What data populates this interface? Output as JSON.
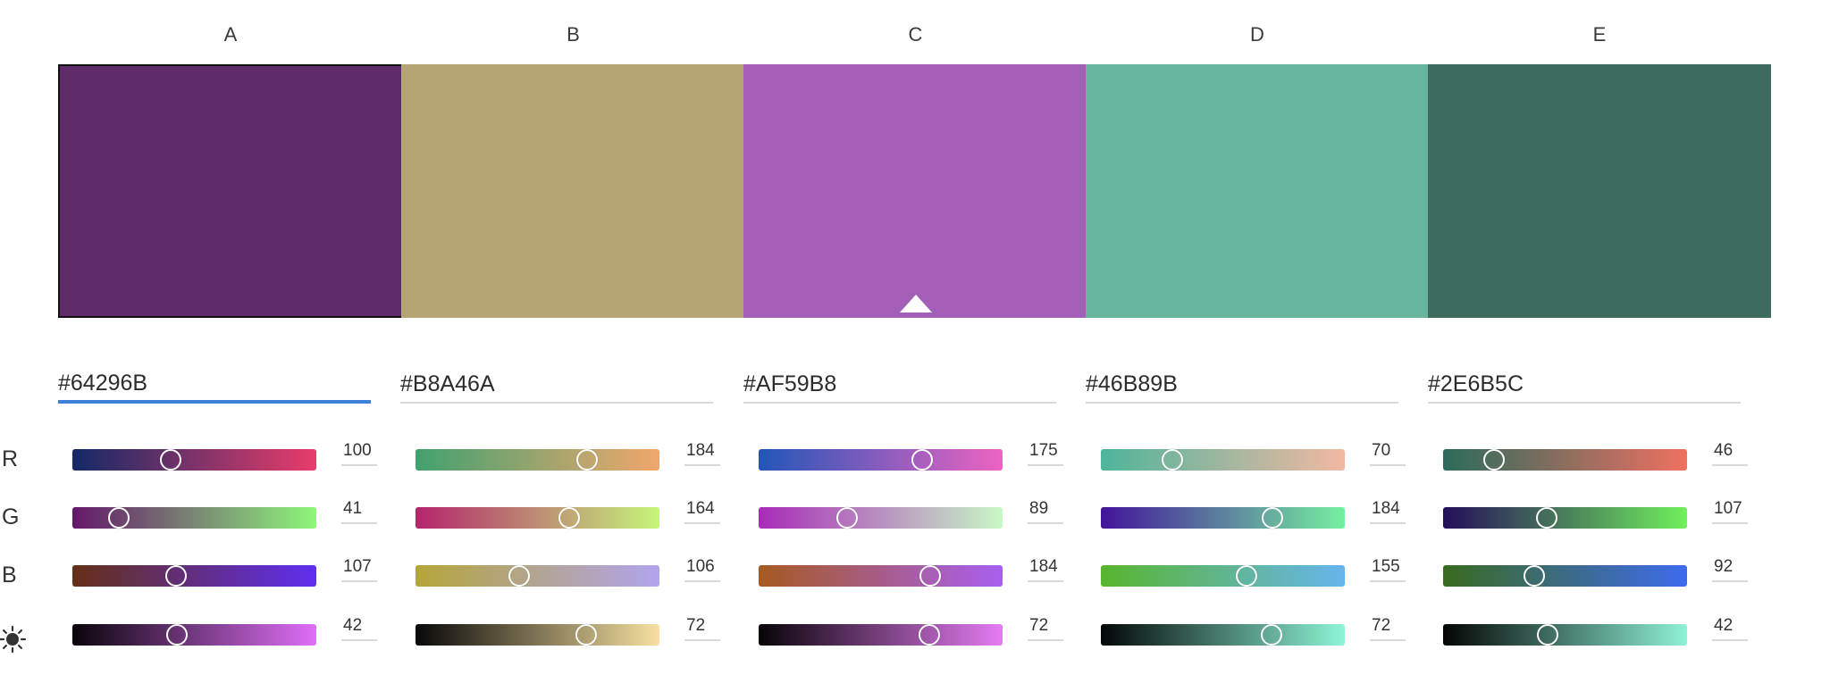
{
  "columns": [
    {
      "letter": "A",
      "hex": "#64296B",
      "color": "#5d2c69",
      "r": 100,
      "g": 41,
      "b": 107,
      "brightness": 42,
      "selected": true,
      "gradients": {
        "r": [
          "#132967",
          "#e93c6b"
        ],
        "g": [
          "#64176b",
          "#8ef77b"
        ],
        "b": [
          "#642f16",
          "#5f2ef0"
        ],
        "l": [
          "#0a050b",
          "#df6ef8"
        ]
      }
    },
    {
      "letter": "B",
      "hex": "#B8A46A",
      "color": "#b4a572",
      "r": 184,
      "g": 164,
      "b": 106,
      "brightness": 72,
      "selected": false,
      "gradients": {
        "r": [
          "#41a16f",
          "#f1a76c"
        ],
        "g": [
          "#b5256d",
          "#c5f57a"
        ],
        "b": [
          "#b4a539",
          "#b2a4ee"
        ],
        "l": [
          "#080808",
          "#f7e1a1"
        ]
      }
    },
    {
      "letter": "C",
      "hex": "#AF59B8",
      "color": "#a35fb7",
      "r": 175,
      "g": 89,
      "b": 184,
      "brightness": 72,
      "selected": false,
      "gradients": {
        "r": [
          "#2256b8",
          "#ee63c2"
        ],
        "g": [
          "#a82bb8",
          "#c9f7c7"
        ],
        "b": [
          "#a65a20",
          "#a85ff1"
        ],
        "l": [
          "#080408",
          "#e57bf3"
        ]
      }
    },
    {
      "letter": "D",
      "hex": "#46B89B",
      "color": "#67b59c",
      "r": 70,
      "g": 184,
      "b": 155,
      "brightness": 72,
      "selected": false,
      "gradients": {
        "r": [
          "#4db59b",
          "#f2b8a2"
        ],
        "g": [
          "#43149b",
          "#75f0a0"
        ],
        "b": [
          "#58b52e",
          "#67b5ee"
        ],
        "l": [
          "#040707",
          "#8ef5d7"
        ]
      }
    },
    {
      "letter": "E",
      "hex": "#2E6B5C",
      "color": "#3d6b5e",
      "r": 46,
      "g": 107,
      "b": 92,
      "brightness": 42,
      "selected": false,
      "gradients": {
        "r": [
          "#2a6b5c",
          "#f07061"
        ],
        "g": [
          "#240e5a",
          "#70f05c"
        ],
        "b": [
          "#3a6b1f",
          "#3e6bee"
        ],
        "l": [
          "#030504",
          "#8ef2d7"
        ]
      }
    }
  ],
  "row_labels": [
    "R",
    "G",
    "B"
  ],
  "brightness_icon": "sun-icon",
  "colors": {
    "accent": "#3d7fd9"
  }
}
